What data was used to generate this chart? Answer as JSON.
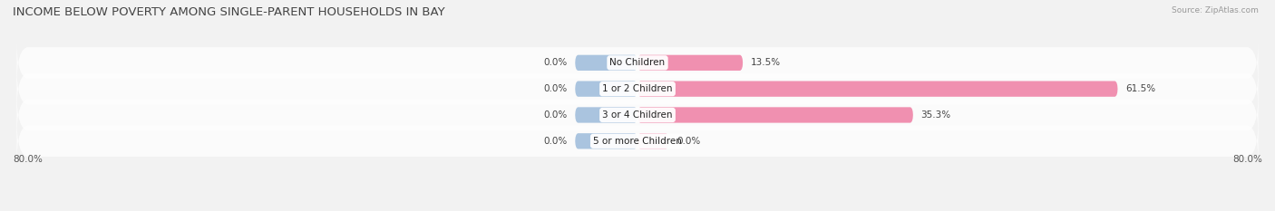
{
  "title": "INCOME BELOW POVERTY AMONG SINGLE-PARENT HOUSEHOLDS IN BAY",
  "source": "Source: ZipAtlas.com",
  "categories": [
    "No Children",
    "1 or 2 Children",
    "3 or 4 Children",
    "5 or more Children"
  ],
  "single_father": [
    0.0,
    0.0,
    0.0,
    0.0
  ],
  "single_mother": [
    13.5,
    61.5,
    35.3,
    0.0
  ],
  "father_color": "#aac4df",
  "mother_color": "#f090b0",
  "mother_color_light": "#f8bcd0",
  "bg_color": "#f2f2f2",
  "row_bg_color": "#e8e8e8",
  "xlim_left": -80.0,
  "xlim_right": 80.0,
  "axis_left_label": "80.0%",
  "axis_right_label": "80.0%",
  "title_fontsize": 9.5,
  "label_fontsize": 7.5,
  "cat_fontsize": 7.5,
  "source_fontsize": 6.5,
  "bar_height": 0.6,
  "father_stub": 8.0,
  "mother_stub": 4.0
}
